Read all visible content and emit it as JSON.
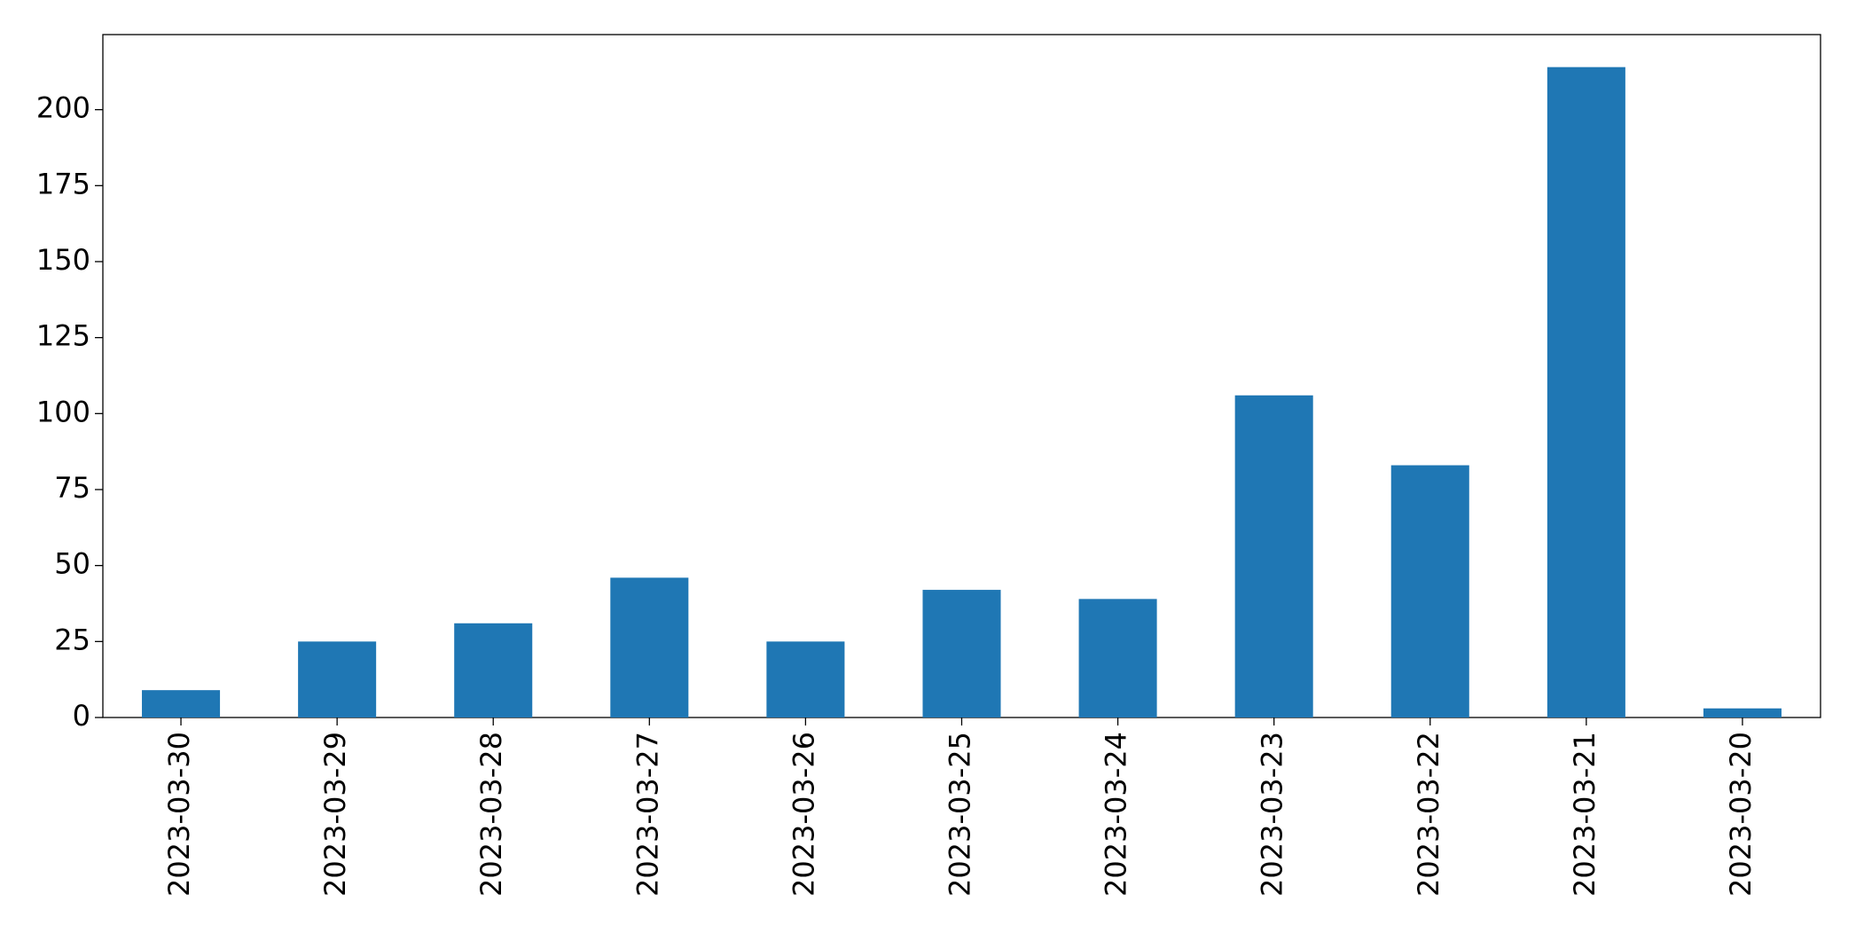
{
  "chart_data": {
    "type": "bar",
    "categories": [
      "2023-03-30",
      "2023-03-29",
      "2023-03-28",
      "2023-03-27",
      "2023-03-26",
      "2023-03-25",
      "2023-03-24",
      "2023-03-23",
      "2023-03-22",
      "2023-03-21",
      "2023-03-20"
    ],
    "values": [
      9,
      25,
      31,
      46,
      25,
      42,
      39,
      106,
      83,
      214,
      3
    ],
    "color": "#1f77b4",
    "ylim": [
      0,
      224.7
    ],
    "yticks": [
      0,
      25,
      50,
      75,
      100,
      125,
      150,
      175,
      200
    ],
    "grid": false
  }
}
